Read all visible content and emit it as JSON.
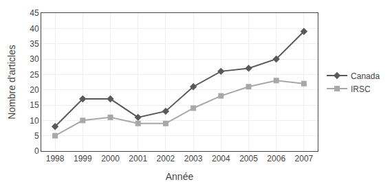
{
  "chart_data": {
    "type": "line",
    "xlabel": "Année",
    "ylabel": "Nombre d'articles",
    "x": [
      1998,
      1999,
      2000,
      2001,
      2002,
      2003,
      2004,
      2005,
      2006,
      2007
    ],
    "series": [
      {
        "name": "Canada",
        "color": "#595959",
        "marker": "diamond",
        "values": [
          8,
          17,
          17,
          11,
          13,
          21,
          26,
          27,
          30,
          39
        ]
      },
      {
        "name": "IRSC",
        "color": "#a8a8a8",
        "marker": "square",
        "values": [
          5,
          10,
          11,
          9,
          9,
          14,
          18,
          21,
          23,
          22
        ]
      }
    ],
    "xlim": [
      1997.5,
      2007.5
    ],
    "xticks": [
      1998,
      1999,
      2000,
      2001,
      2002,
      2003,
      2004,
      2005,
      2006,
      2007
    ],
    "ylim": [
      0,
      45
    ],
    "yticks": [
      0,
      5,
      10,
      15,
      20,
      25,
      30,
      35,
      40,
      45
    ],
    "grid": true,
    "legend": "right"
  }
}
